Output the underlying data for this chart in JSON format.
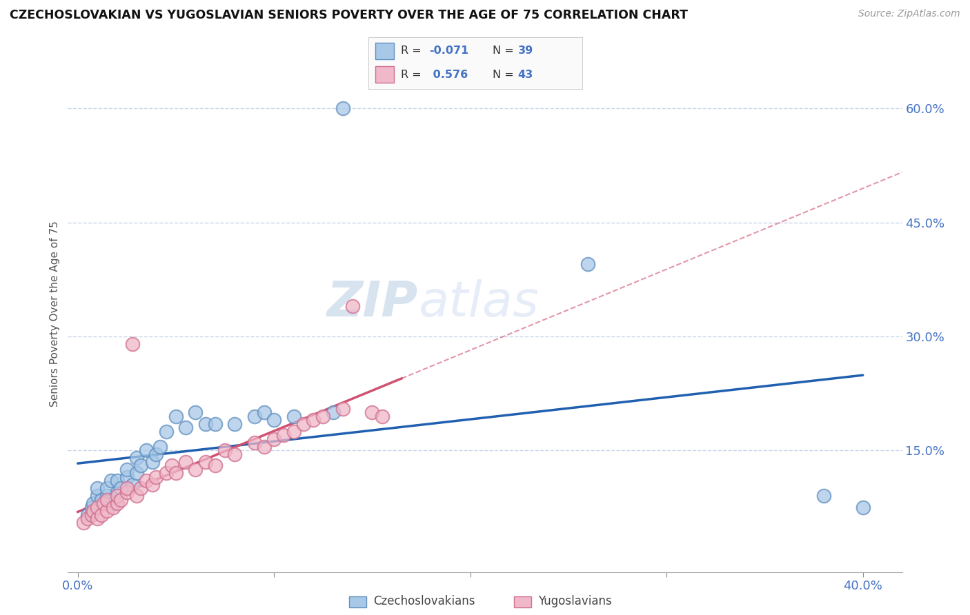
{
  "title": "CZECHOSLOVAKIAN VS YUGOSLAVIAN SENIORS POVERTY OVER THE AGE OF 75 CORRELATION CHART",
  "source": "Source: ZipAtlas.com",
  "ylabel": "Seniors Poverty Over the Age of 75",
  "xlim": [
    -0.005,
    0.42
  ],
  "ylim": [
    -0.01,
    0.67
  ],
  "xticks": [
    0.0,
    0.1,
    0.2,
    0.3,
    0.4
  ],
  "xtick_labels": [
    "0.0%",
    "",
    "",
    "",
    "40.0%"
  ],
  "ytick_labels_right": [
    "15.0%",
    "30.0%",
    "45.0%",
    "60.0%"
  ],
  "ytick_vals_right": [
    0.15,
    0.3,
    0.45,
    0.6
  ],
  "blue_color": "#a8c8e8",
  "blue_edge_color": "#6090c0",
  "pink_color": "#f0b8c8",
  "pink_edge_color": "#d07090",
  "blue_line_color": "#2060b0",
  "pink_line_color": "#d05070",
  "background_color": "#ffffff",
  "grid_color": "#c8d4e8",
  "watermark_zip": "ZIP",
  "watermark_atlas": "atlas",
  "czecho_x": [
    0.005,
    0.007,
    0.008,
    0.01,
    0.01,
    0.012,
    0.015,
    0.015,
    0.017,
    0.018,
    0.02,
    0.02,
    0.022,
    0.025,
    0.025,
    0.028,
    0.03,
    0.03,
    0.032,
    0.035,
    0.038,
    0.04,
    0.042,
    0.045,
    0.05,
    0.055,
    0.06,
    0.065,
    0.07,
    0.08,
    0.09,
    0.095,
    0.1,
    0.11,
    0.13,
    0.135,
    0.26,
    0.38,
    0.4
  ],
  "czecho_y": [
    0.065,
    0.075,
    0.08,
    0.09,
    0.1,
    0.085,
    0.09,
    0.1,
    0.11,
    0.08,
    0.095,
    0.11,
    0.1,
    0.115,
    0.125,
    0.105,
    0.12,
    0.14,
    0.13,
    0.15,
    0.135,
    0.145,
    0.155,
    0.175,
    0.195,
    0.18,
    0.2,
    0.185,
    0.185,
    0.185,
    0.195,
    0.2,
    0.19,
    0.195,
    0.2,
    0.6,
    0.395,
    0.09,
    0.075
  ],
  "yugoslav_x": [
    0.003,
    0.005,
    0.007,
    0.008,
    0.01,
    0.01,
    0.012,
    0.013,
    0.015,
    0.015,
    0.018,
    0.02,
    0.02,
    0.022,
    0.025,
    0.025,
    0.028,
    0.03,
    0.032,
    0.035,
    0.038,
    0.04,
    0.045,
    0.048,
    0.05,
    0.055,
    0.06,
    0.065,
    0.07,
    0.075,
    0.08,
    0.09,
    0.095,
    0.1,
    0.105,
    0.11,
    0.115,
    0.12,
    0.125,
    0.135,
    0.14,
    0.15,
    0.155
  ],
  "yugoslav_y": [
    0.055,
    0.06,
    0.065,
    0.07,
    0.06,
    0.075,
    0.065,
    0.08,
    0.07,
    0.085,
    0.075,
    0.08,
    0.09,
    0.085,
    0.095,
    0.1,
    0.29,
    0.09,
    0.1,
    0.11,
    0.105,
    0.115,
    0.12,
    0.13,
    0.12,
    0.135,
    0.125,
    0.135,
    0.13,
    0.15,
    0.145,
    0.16,
    0.155,
    0.165,
    0.17,
    0.175,
    0.185,
    0.19,
    0.195,
    0.205,
    0.34,
    0.2,
    0.195
  ],
  "dot_size": 200
}
